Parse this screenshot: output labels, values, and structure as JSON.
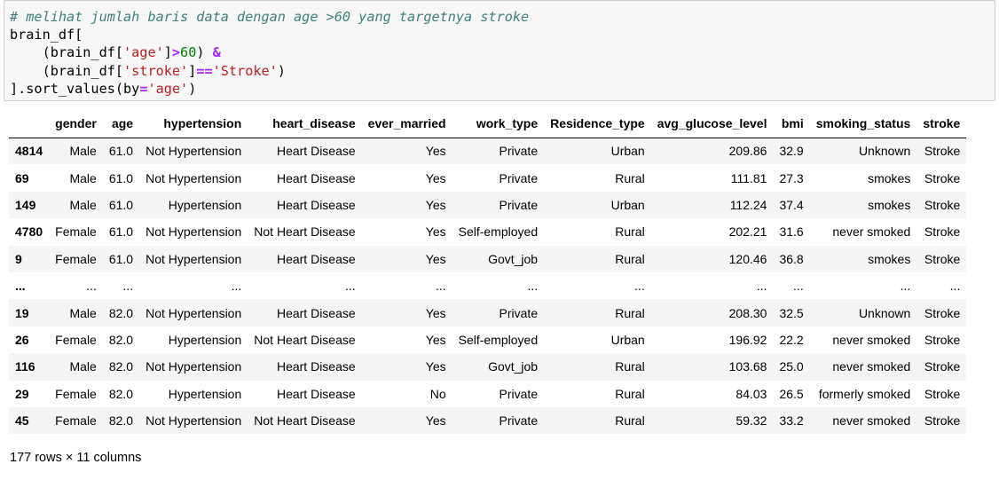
{
  "code": {
    "comment": "# melihat jumlah baris data dengan age >60 yang targetnya stroke",
    "line2": "brain_df[",
    "line3_prefix": "    (brain_df[",
    "line3_key": "'age'",
    "line3_mid": "]",
    "line3_op": ">",
    "line3_num": "60",
    "line3_close": ") ",
    "line3_amp": "&",
    "line4_prefix": "    (brain_df[",
    "line4_key": "'stroke'",
    "line4_mid": "]",
    "line4_op": "==",
    "line4_val": "'Stroke'",
    "line4_close": ")",
    "line5_prefix": "].sort_values(by",
    "line5_op": "=",
    "line5_val": "'age'",
    "line5_close": ")"
  },
  "table": {
    "columns": [
      "",
      "gender",
      "age",
      "hypertension",
      "heart_disease",
      "ever_married",
      "work_type",
      "Residence_type",
      "avg_glucose_level",
      "bmi",
      "smoking_status",
      "stroke"
    ],
    "rows": [
      [
        "4814",
        "Male",
        "61.0",
        "Not Hypertension",
        "Heart Disease",
        "Yes",
        "Private",
        "Urban",
        "209.86",
        "32.9",
        "Unknown",
        "Stroke"
      ],
      [
        "69",
        "Male",
        "61.0",
        "Not Hypertension",
        "Heart Disease",
        "Yes",
        "Private",
        "Rural",
        "111.81",
        "27.3",
        "smokes",
        "Stroke"
      ],
      [
        "149",
        "Male",
        "61.0",
        "Hypertension",
        "Heart Disease",
        "Yes",
        "Private",
        "Urban",
        "112.24",
        "37.4",
        "smokes",
        "Stroke"
      ],
      [
        "4780",
        "Female",
        "61.0",
        "Not Hypertension",
        "Not Heart Disease",
        "Yes",
        "Self-employed",
        "Rural",
        "202.21",
        "31.6",
        "never smoked",
        "Stroke"
      ],
      [
        "9",
        "Female",
        "61.0",
        "Not Hypertension",
        "Heart Disease",
        "Yes",
        "Govt_job",
        "Rural",
        "120.46",
        "36.8",
        "smokes",
        "Stroke"
      ],
      [
        "...",
        "...",
        "...",
        "...",
        "...",
        "...",
        "...",
        "...",
        "...",
        "...",
        "...",
        "..."
      ],
      [
        "19",
        "Male",
        "82.0",
        "Not Hypertension",
        "Heart Disease",
        "Yes",
        "Private",
        "Rural",
        "208.30",
        "32.5",
        "Unknown",
        "Stroke"
      ],
      [
        "26",
        "Female",
        "82.0",
        "Hypertension",
        "Not Heart Disease",
        "Yes",
        "Self-employed",
        "Urban",
        "196.92",
        "22.2",
        "never smoked",
        "Stroke"
      ],
      [
        "116",
        "Male",
        "82.0",
        "Not Hypertension",
        "Heart Disease",
        "Yes",
        "Govt_job",
        "Rural",
        "103.68",
        "25.0",
        "never smoked",
        "Stroke"
      ],
      [
        "29",
        "Female",
        "82.0",
        "Hypertension",
        "Heart Disease",
        "No",
        "Private",
        "Rural",
        "84.03",
        "26.5",
        "formerly smoked",
        "Stroke"
      ],
      [
        "45",
        "Female",
        "82.0",
        "Not Hypertension",
        "Not Heart Disease",
        "Yes",
        "Private",
        "Rural",
        "59.32",
        "33.2",
        "never smoked",
        "Stroke"
      ]
    ]
  },
  "shape_text": "177 rows × 11 columns"
}
